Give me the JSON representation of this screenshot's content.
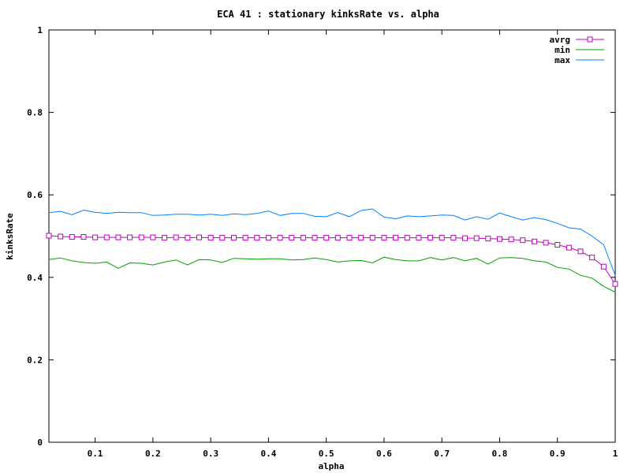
{
  "chart_data": {
    "type": "line",
    "title": "ECA 41 : stationary kinksRate vs. alpha",
    "xlabel": "alpha",
    "ylabel": "kinksRate",
    "xlim": [
      0.02,
      1.0
    ],
    "ylim": [
      0,
      1
    ],
    "xticks": [
      0.1,
      0.2,
      0.3,
      0.4,
      0.5,
      0.6,
      0.7,
      0.8,
      0.9,
      1
    ],
    "xtick_labels": [
      "0.1",
      "0.2",
      "0.3",
      "0.4",
      "0.5",
      "0.6",
      "0.7",
      "0.8",
      "0.9",
      "1"
    ],
    "yticks": [
      0,
      0.2,
      0.4,
      0.6,
      0.8,
      1
    ],
    "ytick_labels": [
      "0",
      "0.2",
      "0.4",
      "0.6",
      "0.8",
      "1"
    ],
    "grid": false,
    "legend_position": "top-right",
    "x": [
      0.02,
      0.04,
      0.06,
      0.08,
      0.1,
      0.12,
      0.14,
      0.16,
      0.18,
      0.2,
      0.22,
      0.24,
      0.26,
      0.28,
      0.3,
      0.32,
      0.34,
      0.36,
      0.38,
      0.4,
      0.42,
      0.44,
      0.46,
      0.48,
      0.5,
      0.52,
      0.54,
      0.56,
      0.58,
      0.6,
      0.62,
      0.64,
      0.66,
      0.68,
      0.7,
      0.72,
      0.74,
      0.76,
      0.78,
      0.8,
      0.82,
      0.84,
      0.86,
      0.88,
      0.9,
      0.92,
      0.94,
      0.96,
      0.98,
      1.0
    ],
    "series": [
      {
        "name": "avrg",
        "color": "#c000c0",
        "marker": "square",
        "values": [
          0.501,
          0.499,
          0.498,
          0.498,
          0.497,
          0.497,
          0.497,
          0.497,
          0.497,
          0.497,
          0.496,
          0.497,
          0.496,
          0.497,
          0.496,
          0.496,
          0.496,
          0.496,
          0.496,
          0.496,
          0.496,
          0.496,
          0.496,
          0.496,
          0.496,
          0.496,
          0.496,
          0.496,
          0.496,
          0.496,
          0.496,
          0.496,
          0.496,
          0.496,
          0.496,
          0.496,
          0.495,
          0.495,
          0.494,
          0.493,
          0.492,
          0.49,
          0.487,
          0.484,
          0.479,
          0.472,
          0.463,
          0.448,
          0.426,
          0.384
        ]
      },
      {
        "name": "min",
        "color": "#00a000",
        "values": [
          0.443,
          0.447,
          0.44,
          0.436,
          0.434,
          0.437,
          0.422,
          0.435,
          0.434,
          0.43,
          0.437,
          0.442,
          0.43,
          0.443,
          0.442,
          0.436,
          0.446,
          0.445,
          0.444,
          0.445,
          0.445,
          0.442,
          0.443,
          0.447,
          0.443,
          0.437,
          0.44,
          0.441,
          0.435,
          0.449,
          0.443,
          0.44,
          0.44,
          0.448,
          0.442,
          0.448,
          0.44,
          0.446,
          0.432,
          0.447,
          0.448,
          0.446,
          0.44,
          0.437,
          0.424,
          0.42,
          0.405,
          0.398,
          0.378,
          0.364
        ]
      },
      {
        "name": "max",
        "color": "#0080ff",
        "values": [
          0.557,
          0.56,
          0.552,
          0.563,
          0.558,
          0.555,
          0.558,
          0.557,
          0.557,
          0.55,
          0.551,
          0.553,
          0.553,
          0.551,
          0.553,
          0.55,
          0.554,
          0.552,
          0.555,
          0.561,
          0.55,
          0.555,
          0.555,
          0.548,
          0.547,
          0.557,
          0.547,
          0.562,
          0.566,
          0.546,
          0.542,
          0.549,
          0.547,
          0.549,
          0.551,
          0.55,
          0.539,
          0.547,
          0.541,
          0.556,
          0.547,
          0.539,
          0.545,
          0.54,
          0.531,
          0.52,
          0.517,
          0.5,
          0.479,
          0.405
        ]
      }
    ]
  }
}
